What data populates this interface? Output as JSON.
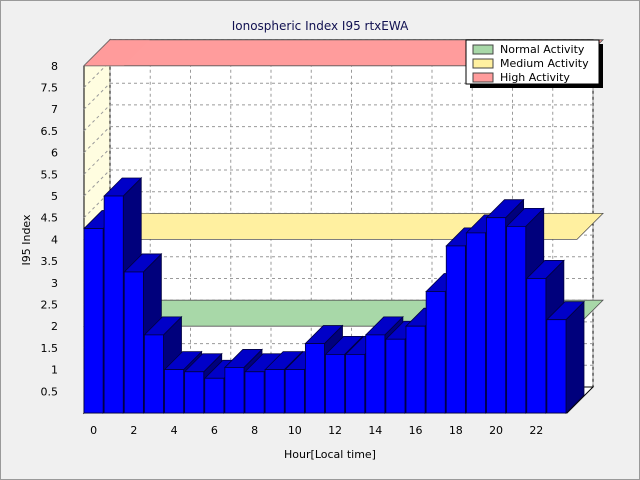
{
  "chart_data": {
    "type": "bar",
    "title": "Ionospheric Index I95 rtxEWA",
    "xlabel": "Hour[Local time]",
    "ylabel": "I95 Index",
    "x": [
      0,
      1,
      2,
      3,
      4,
      5,
      6,
      7,
      8,
      9,
      10,
      11,
      12,
      13,
      14,
      15,
      16,
      17,
      18,
      19,
      20,
      21,
      22,
      23
    ],
    "values": [
      4.25,
      5.0,
      3.25,
      1.8,
      1.0,
      0.95,
      0.8,
      1.05,
      0.95,
      1.0,
      1.0,
      1.6,
      1.35,
      1.35,
      1.8,
      1.7,
      2.0,
      2.8,
      3.85,
      4.15,
      4.5,
      4.3,
      3.1,
      2.15
    ],
    "x_ticks": [
      "0",
      "2",
      "4",
      "6",
      "8",
      "10",
      "12",
      "14",
      "16",
      "18",
      "20",
      "22"
    ],
    "y_ticks": [
      "0.5",
      "1",
      "1.5",
      "2",
      "2.5",
      "3",
      "3.5",
      "4",
      "4.5",
      "5",
      "5.5",
      "6",
      "6.5",
      "7",
      "7.5",
      "8"
    ],
    "ylim": [
      0,
      8
    ],
    "grid": true,
    "bands": [
      {
        "name": "Normal Activity",
        "low": 2.0,
        "high": 2.0,
        "color": "#a8d8a8"
      },
      {
        "name": "Medium Activity",
        "low": 4.0,
        "high": 4.0,
        "color": "#fff0a0"
      },
      {
        "name": "High Activity",
        "low": 8.0,
        "high": 8.0,
        "color": "#ff9c9c"
      }
    ],
    "legend_placement": "top-right",
    "bar_color": "#0000ff"
  }
}
